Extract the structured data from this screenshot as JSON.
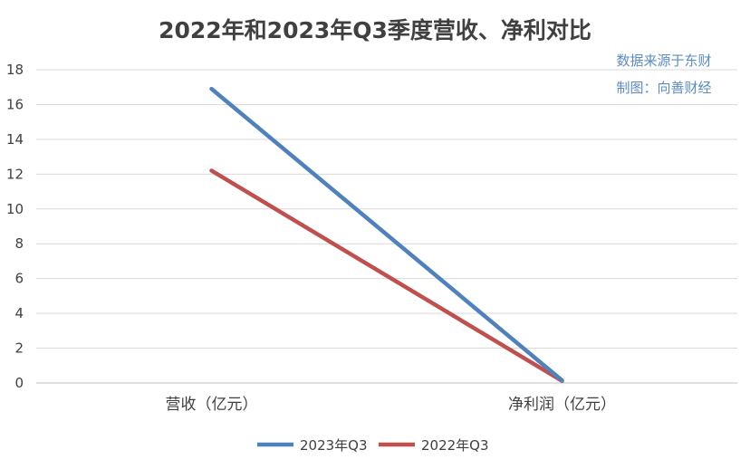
{
  "chart_data": {
    "type": "line",
    "title": "2022年和2023年Q3季度营收、净利对比",
    "categories": [
      "营收（亿元）",
      "净利润（亿元）"
    ],
    "series": [
      {
        "name": "2023年Q3",
        "values": [
          16.9,
          0.15
        ],
        "color": "#4f81bd"
      },
      {
        "name": "2022年Q3",
        "values": [
          12.2,
          0.12
        ],
        "color": "#c0504d"
      }
    ],
    "ylim": [
      0,
      18
    ],
    "yticks": [
      "0",
      "2",
      "4",
      "6",
      "8",
      "10",
      "12",
      "14",
      "16",
      "18"
    ],
    "grid": true,
    "legend": "bottom",
    "annotations": [
      "数据来源于东财",
      "制图：向善财经"
    ],
    "xlabel": "",
    "ylabel": ""
  }
}
